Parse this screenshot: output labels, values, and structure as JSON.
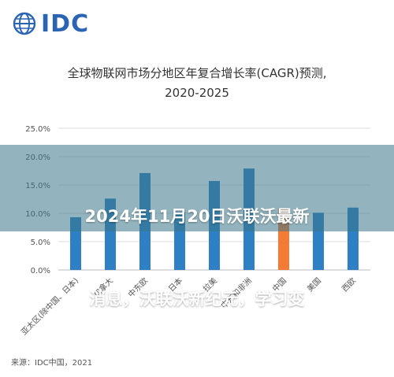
{
  "brand": {
    "logo_text": "IDC",
    "logo_icon": "idc-globe-icon",
    "brand_color": "#2c64b4"
  },
  "headline": {
    "line1": "2024年11月20日沃联沃最新",
    "line2": "消息，沃联沃新纪元，学习变"
  },
  "source": "来源：IDC中国，2021",
  "chart_data": {
    "type": "bar",
    "title": "全球物联网市场分地区年复合增长率(CAGR)预测,",
    "subtitle": "2020-2025",
    "categories": [
      "亚太区(除中国、日本)",
      "加拿大",
      "中东欧",
      "日本",
      "拉美",
      "中东和非洲",
      "中国",
      "美国",
      "西欧"
    ],
    "values": [
      9.3,
      12.6,
      17.1,
      10.2,
      15.7,
      17.9,
      10.9,
      10.1,
      11.0
    ],
    "y_ticks": [
      "0.0%",
      "5.0%",
      "10.0%",
      "15.0%",
      "20.0%",
      "25.0%"
    ],
    "ylim": [
      0,
      25
    ],
    "grid": true,
    "colors": {
      "default": "#2e7fc4",
      "highlight": "#f47b36",
      "highlight_category": "中国",
      "grid": "#dddddd"
    }
  }
}
